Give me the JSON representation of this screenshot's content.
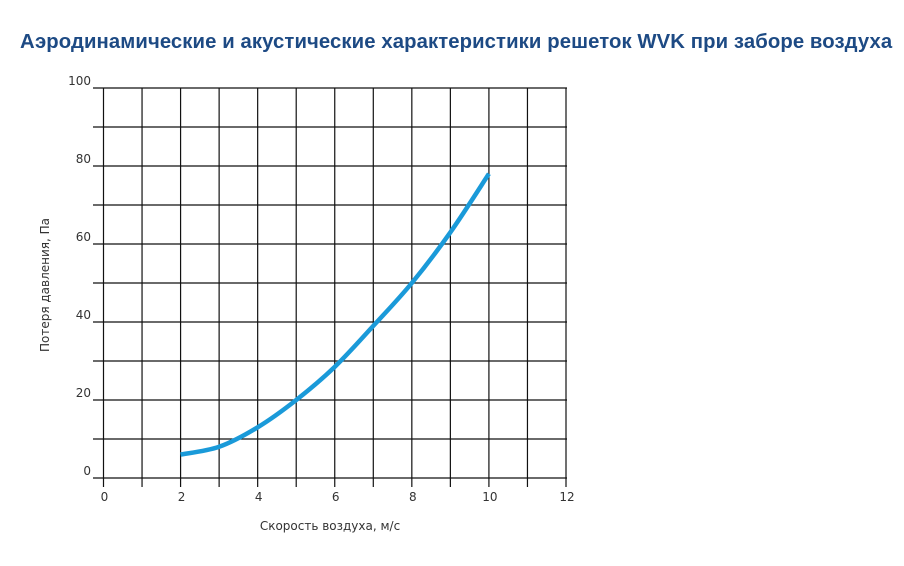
{
  "chart_data": {
    "type": "line",
    "title": "Аэродинамические и акустические характеристики решеток WVK при заборе воздуха",
    "xlabel": "Скорость воздуха, м/с",
    "ylabel": "Потеря давления, Па",
    "xlim": [
      0,
      12
    ],
    "ylim": [
      0,
      100
    ],
    "xticks": [
      0,
      2,
      4,
      6,
      8,
      10,
      12
    ],
    "yticks": [
      0,
      20,
      40,
      60,
      80,
      100
    ],
    "grid": true,
    "series": [
      {
        "x": [
          2,
          3,
          4,
          5,
          6,
          7,
          8,
          9,
          10
        ],
        "y": [
          6,
          8,
          13,
          20,
          28.5,
          39,
          50,
          63,
          78
        ],
        "color": "#1a9ad9"
      }
    ]
  }
}
